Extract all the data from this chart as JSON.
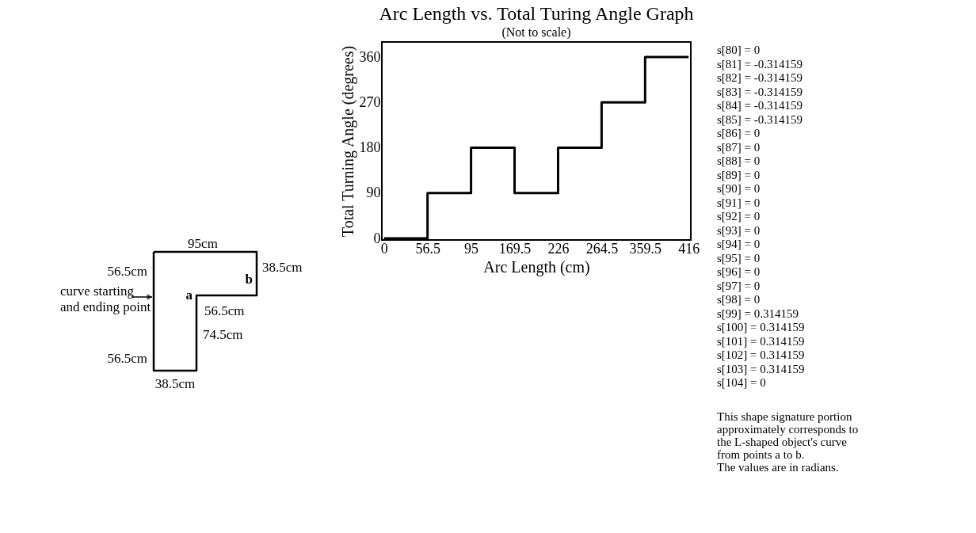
{
  "chart_data": [
    {
      "type": "other",
      "annotations": [
        "95cm",
        "56.5cm",
        "38.5cm",
        "b",
        "curve starting",
        "and ending point",
        "a",
        "56.5cm",
        "74.5cm",
        "56.5cm",
        "38.5cm"
      ]
    },
    {
      "type": "step",
      "title": "Arc Length vs. Total Turing Angle Graph",
      "subtitle": "(Not to scale)",
      "xlabel": "Arc Length (cm)",
      "ylabel": "Total Turning Angle (degrees)",
      "categories": [
        "0",
        "56.5",
        "95",
        "169.5",
        "226",
        "264.5",
        "359.5",
        "416"
      ],
      "values": [
        0,
        90,
        180,
        90,
        180,
        270,
        360,
        360
      ],
      "color": "#000000",
      "ylim": [
        -3,
        390
      ],
      "yticks": [
        0,
        90,
        180,
        270,
        360
      ],
      "grid": false
    },
    {
      "type": "other",
      "annotations": [
        "s[80] = 0",
        "s[81] = -0.314159",
        "s[82] = -0.314159",
        "s[83] = -0.314159",
        "s[84] = -0.314159",
        "s[85] = -0.314159",
        "s[86] = 0",
        "s[87] = 0",
        "s[88] = 0",
        "s[89] = 0",
        "s[90] = 0",
        "s[91] = 0",
        "s[92] = 0",
        "s[93] = 0",
        "s[94] = 0",
        "s[95] = 0",
        "s[96] = 0",
        "s[97] = 0",
        "s[98] = 0",
        "s[99] = 0.314159",
        "s[100] = 0.314159",
        "s[101] = 0.314159",
        "s[102] = 0.314159",
        "s[103] = 0.314159",
        "s[104] = 0",
        "This shape signature portion",
        "approximately corresponds to",
        "the L-shaped object's curve",
        "from points a to b.",
        "The values are in radians."
      ]
    }
  ]
}
